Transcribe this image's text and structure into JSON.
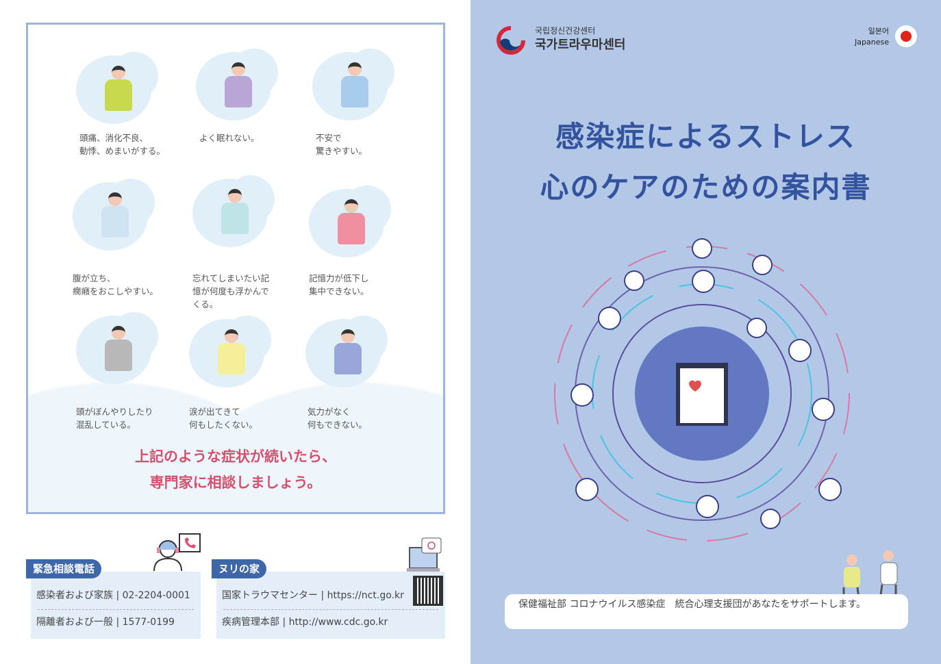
{
  "symptoms": [
    {
      "caption": "頭痛、消化不良、\n動悸、めまいがする。",
      "color": "#c9d94c"
    },
    {
      "caption": "よく眠れない。",
      "color": "#b9a6d6"
    },
    {
      "caption": "不安で\n驚きやすい。",
      "color": "#a9ccec"
    },
    {
      "caption": "腹が立ち、\n癇癪をおこしやすい。",
      "color": "#cfe3f1"
    },
    {
      "caption": "忘れてしまいたい記\n憶が何度も浮かんで\nくる。",
      "color": "#bfe3e6"
    },
    {
      "caption": "記憶力が低下し\n集中できない。",
      "color": "#f08fa0"
    },
    {
      "caption": "頭がぼんやりしたり\n混乱している。",
      "color": "#b8b8b8"
    },
    {
      "caption": "涙が出てきて\n何もしたくない。",
      "color": "#f5ef9a"
    },
    {
      "caption": "気力がなく\n何もできない。",
      "color": "#9aa6d8"
    }
  ],
  "advice": {
    "line1": "上記のような症状が続いたら、",
    "line2": "専門家に相談しましょう。"
  },
  "hotline": {
    "label": "緊急相談電話",
    "rows": [
      {
        "name": "感染者および家族",
        "value": "02-2204-0001"
      },
      {
        "name": "隔離者および一般",
        "value": "1577-0199"
      }
    ]
  },
  "nuri": {
    "label": "ヌリの家",
    "rows": [
      {
        "name": "国家トラウマセンター",
        "value": "https://nct.go.kr"
      },
      {
        "name": "疾病管理本部",
        "value": "http://www.cdc.go.kr"
      }
    ]
  },
  "logo": {
    "line1": "국립정신건강센터",
    "line2": "국가트라우마센터"
  },
  "language": {
    "korean": "일본어",
    "english": "Japanese"
  },
  "title": {
    "line1": "感染症によるストレス",
    "line2": "心のケアのための案内書"
  },
  "footer": "保健福祉部 コロナウイルス感染症　統合心理支援団があなたをサポートします。",
  "colors": {
    "title": "#34539e",
    "advice": "#d4506c",
    "panel": "#b3c8e7",
    "tag": "#3d67a8"
  }
}
